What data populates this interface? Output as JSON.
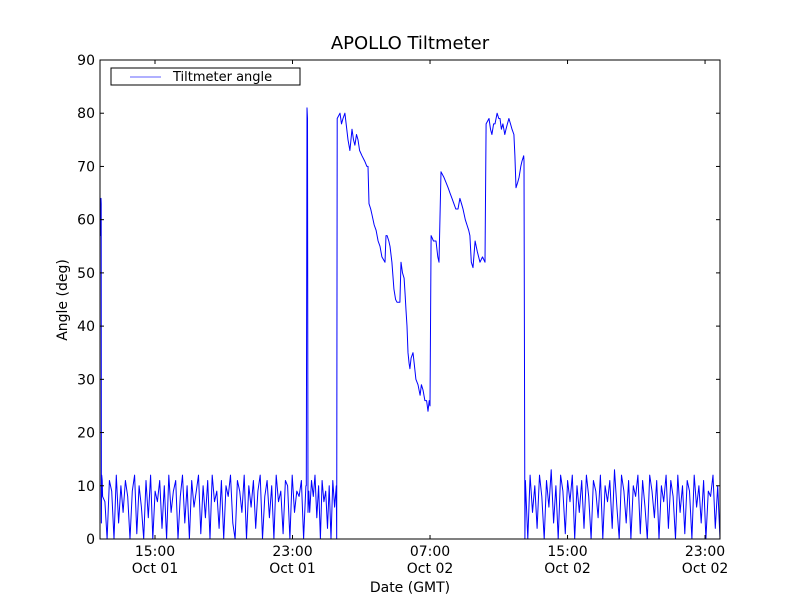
{
  "chart_data": {
    "type": "line",
    "title": "APOLLO Tiltmeter",
    "xlabel": "Date (GMT)",
    "ylabel": "Angle (deg)",
    "x_units": "hours since Oct 01 00:00 GMT",
    "xlim": [
      11.8,
      47.87
    ],
    "ylim": [
      0,
      90
    ],
    "yticks": [
      0,
      10,
      20,
      30,
      40,
      50,
      60,
      70,
      80,
      90
    ],
    "xticks": [
      {
        "x": 15,
        "time": "15:00",
        "date": "Oct 01"
      },
      {
        "x": 23,
        "time": "23:00",
        "date": "Oct 01"
      },
      {
        "x": 31,
        "time": "07:00",
        "date": "Oct 02"
      },
      {
        "x": 39,
        "time": "15:00",
        "date": "Oct 02"
      },
      {
        "x": 47,
        "time": "23:00",
        "date": "Oct 02"
      }
    ],
    "legend": {
      "placement": "top-left",
      "entries": [
        "Tiltmeter angle"
      ]
    },
    "grid": false,
    "series": [
      {
        "name": "Tiltmeter angle",
        "color": "#0000ff",
        "segments": [
          {
            "type": "points",
            "points": [
              [
                11.8,
                58
              ],
              [
                11.82,
                57
              ],
              [
                11.84,
                62
              ],
              [
                11.86,
                64
              ],
              [
                11.87,
                63
              ],
              [
                11.88,
                3
              ],
              [
                11.9,
                12
              ],
              [
                11.93,
                11
              ]
            ]
          },
          {
            "type": "noise",
            "start": 11.95,
            "end": 23.78,
            "values": [
              8,
              7,
              0,
              11,
              9,
              0,
              12,
              3,
              10,
              5,
              11,
              8,
              0,
              9,
              12,
              1,
              10,
              6,
              0,
              11,
              4,
              12,
              0,
              9,
              7,
              11,
              2,
              10,
              0,
              12,
              5,
              9,
              11,
              0,
              8,
              12,
              3,
              10,
              0,
              11,
              6,
              9,
              12,
              1,
              10,
              4,
              11,
              0,
              12,
              7,
              9,
              2,
              11,
              0,
              10,
              8,
              12,
              3,
              0,
              11,
              9,
              5,
              12,
              0,
              10,
              6,
              11,
              2,
              9,
              12,
              0,
              8,
              11,
              4,
              10,
              0,
              12,
              7,
              9,
              1,
              11,
              10,
              0,
              12,
              5,
              9,
              8,
              11,
              0,
              10
            ]
          },
          {
            "type": "points",
            "points": [
              [
                23.8,
                10
              ],
              [
                23.82,
                40
              ],
              [
                23.84,
                81
              ],
              [
                23.87,
                79
              ],
              [
                23.9,
                5
              ],
              [
                23.95,
                9
              ]
            ]
          },
          {
            "type": "noise",
            "start": 24.0,
            "end": 25.55,
            "values": [
              5,
              11,
              8,
              12,
              4,
              10,
              0,
              11,
              7,
              9,
              2,
              10,
              0,
              11,
              6,
              10
            ]
          },
          {
            "type": "points",
            "points": [
              [
                25.57,
                0
              ],
              [
                25.6,
                79
              ],
              [
                25.76,
                80
              ],
              [
                25.85,
                78
              ],
              [
                25.94,
                79
              ],
              [
                26.05,
                80
              ],
              [
                26.23,
                75
              ],
              [
                26.34,
                73
              ],
              [
                26.46,
                77
              ],
              [
                26.55,
                75
              ],
              [
                26.63,
                74
              ],
              [
                26.72,
                76
              ],
              [
                26.81,
                75
              ],
              [
                26.9,
                73
              ],
              [
                27.04,
                72
              ],
              [
                27.2,
                71
              ],
              [
                27.33,
                70
              ],
              [
                27.39,
                70
              ],
              [
                27.45,
                63
              ],
              [
                27.55,
                62
              ],
              [
                27.62,
                61
              ],
              [
                27.75,
                59
              ],
              [
                27.86,
                58
              ],
              [
                27.98,
                56
              ],
              [
                28.09,
                55
              ],
              [
                28.2,
                53
              ],
              [
                28.38,
                52
              ],
              [
                28.44,
                57
              ],
              [
                28.5,
                57
              ],
              [
                28.6,
                56
              ],
              [
                28.67,
                55
              ],
              [
                28.78,
                52
              ],
              [
                28.9,
                47
              ],
              [
                29.0,
                45
              ],
              [
                29.08,
                44.5
              ],
              [
                29.25,
                44.5
              ],
              [
                29.31,
                52
              ],
              [
                29.4,
                50
              ],
              [
                29.49,
                49
              ],
              [
                29.55,
                46
              ],
              [
                29.6,
                43
              ],
              [
                29.66,
                40
              ],
              [
                29.72,
                35
              ],
              [
                29.78,
                33
              ],
              [
                29.83,
                32
              ],
              [
                29.9,
                34
              ],
              [
                30.01,
                35
              ],
              [
                30.08,
                33
              ],
              [
                30.18,
                30
              ],
              [
                30.3,
                29
              ],
              [
                30.42,
                27
              ],
              [
                30.5,
                29
              ],
              [
                30.59,
                28
              ],
              [
                30.7,
                26
              ],
              [
                30.8,
                26
              ],
              [
                30.88,
                24
              ],
              [
                30.95,
                26
              ],
              [
                31.0,
                25
              ],
              [
                31.06,
                57
              ],
              [
                31.2,
                56
              ],
              [
                31.35,
                56
              ],
              [
                31.45,
                53
              ],
              [
                31.52,
                52
              ],
              [
                31.64,
                69
              ],
              [
                31.8,
                68
              ],
              [
                31.93,
                67
              ],
              [
                32.05,
                66
              ],
              [
                32.16,
                65
              ],
              [
                32.28,
                64
              ],
              [
                32.39,
                63
              ],
              [
                32.5,
                62
              ],
              [
                32.63,
                62
              ],
              [
                32.74,
                64
              ],
              [
                32.83,
                63
              ],
              [
                32.92,
                62
              ],
              [
                33.05,
                60
              ],
              [
                33.15,
                59
              ],
              [
                33.25,
                58
              ],
              [
                33.32,
                57
              ],
              [
                33.4,
                52
              ],
              [
                33.5,
                51
              ],
              [
                33.62,
                56
              ],
              [
                33.75,
                54
              ],
              [
                33.91,
                52
              ],
              [
                34.05,
                53
              ],
              [
                34.2,
                52
              ],
              [
                34.26,
                78
              ],
              [
                34.43,
                79
              ],
              [
                34.52,
                77
              ],
              [
                34.6,
                76
              ],
              [
                34.7,
                78
              ],
              [
                34.78,
                78
              ],
              [
                34.9,
                80
              ],
              [
                35.0,
                79
              ],
              [
                35.07,
                79
              ],
              [
                35.15,
                77
              ],
              [
                35.24,
                78
              ],
              [
                35.35,
                76
              ],
              [
                35.42,
                77
              ],
              [
                35.5,
                78
              ],
              [
                35.59,
                79
              ],
              [
                35.68,
                78
              ],
              [
                35.77,
                77
              ],
              [
                35.88,
                76
              ],
              [
                35.94,
                72
              ],
              [
                36.0,
                66
              ],
              [
                36.1,
                67
              ],
              [
                36.18,
                68
              ],
              [
                36.28,
                70
              ],
              [
                36.35,
                71
              ],
              [
                36.45,
                72
              ],
              [
                36.47,
                71
              ],
              [
                36.52,
                0
              ]
            ]
          },
          {
            "type": "noise",
            "start": 36.55,
            "end": 47.87,
            "values": [
              11,
              0,
              12,
              5,
              10,
              2,
              12,
              8,
              0,
              11,
              6,
              13,
              3,
              10,
              0,
              12,
              9,
              1,
              11,
              7,
              12,
              0,
              10,
              5,
              11,
              2,
              12,
              8,
              0,
              11,
              9,
              4,
              12,
              0,
              10,
              7,
              11,
              2,
              13,
              6,
              0,
              12,
              9,
              3,
              11,
              0,
              10,
              8,
              12,
              1,
              11,
              6,
              0,
              12,
              9,
              4,
              11,
              0,
              10,
              7,
              12,
              2,
              11,
              8,
              0,
              12,
              5,
              10,
              1,
              11,
              9,
              0,
              12,
              6,
              10,
              3,
              11,
              0,
              9,
              8,
              12,
              2,
              10,
              0
            ]
          }
        ]
      }
    ]
  }
}
